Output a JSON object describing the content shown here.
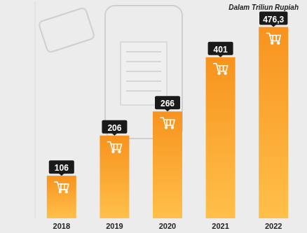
{
  "chart_data": {
    "type": "bar",
    "title": "Dalam Triliun Rupiah",
    "categories": [
      "2018",
      "2019",
      "2020",
      "2021",
      "2022"
    ],
    "values": [
      106,
      206,
      266,
      401,
      476.3
    ],
    "value_labels": [
      "106",
      "206",
      "266",
      "401",
      "476,3"
    ],
    "color": "#f7931e",
    "ylim": [
      0,
      540
    ],
    "grid": false,
    "data_labels": true,
    "tick_labels": "x"
  }
}
